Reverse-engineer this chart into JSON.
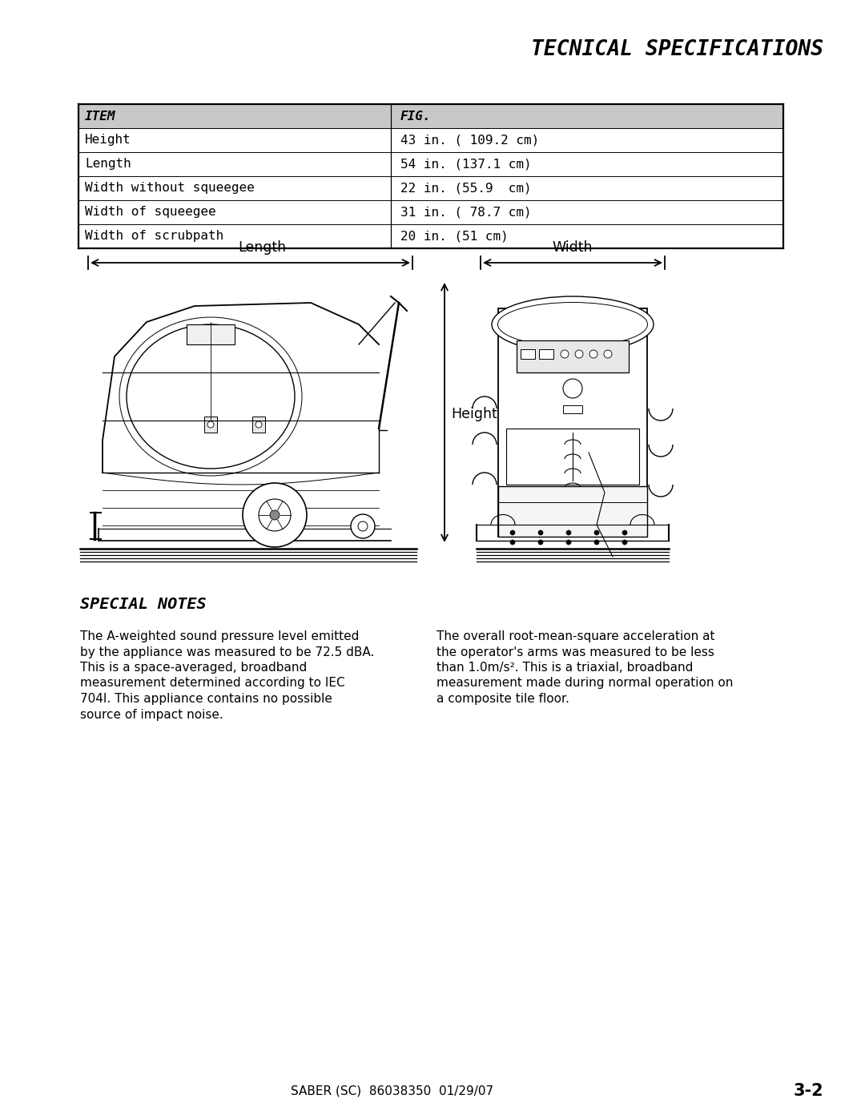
{
  "bg_color": "#ffffff",
  "title": "TECNICAL SPECIFICATIONS",
  "title_fontsize": 19,
  "table_col1": [
    "ITEM",
    "Height",
    "Length",
    "Width without squeegee",
    "Width of squeegee",
    "Width of scrubpath"
  ],
  "table_col2": [
    "FIG.",
    "43 in. ( 109.2 cm)",
    "54 in. (137.1 cm)",
    "22 in. (55.9  cm)",
    "31 in. ( 78.7 cm)",
    "20 in. (51 cm)"
  ],
  "notes_title": "SPECIAL NOTES",
  "left_note_lines": [
    "The A-weighted sound pressure level emitted",
    "by the appliance was measured to be 72.5 dBA.",
    "This is a space-averaged, broadband",
    "measurement determined according to IEC",
    "704I. This appliance contains no possible",
    "source of impact noise."
  ],
  "right_note_lines": [
    "The overall root-mean-square acceleration at",
    "the operator's arms was measured to be less",
    "than 1.0m/s². This is a triaxial, broadband",
    "measurement made during normal operation on",
    "a composite tile floor."
  ],
  "footer_center": "SABER (SC)  86038350  01/29/07",
  "footer_right": "3-2",
  "dim_length": "Length",
  "dim_width": "Width",
  "dim_height": "Height"
}
